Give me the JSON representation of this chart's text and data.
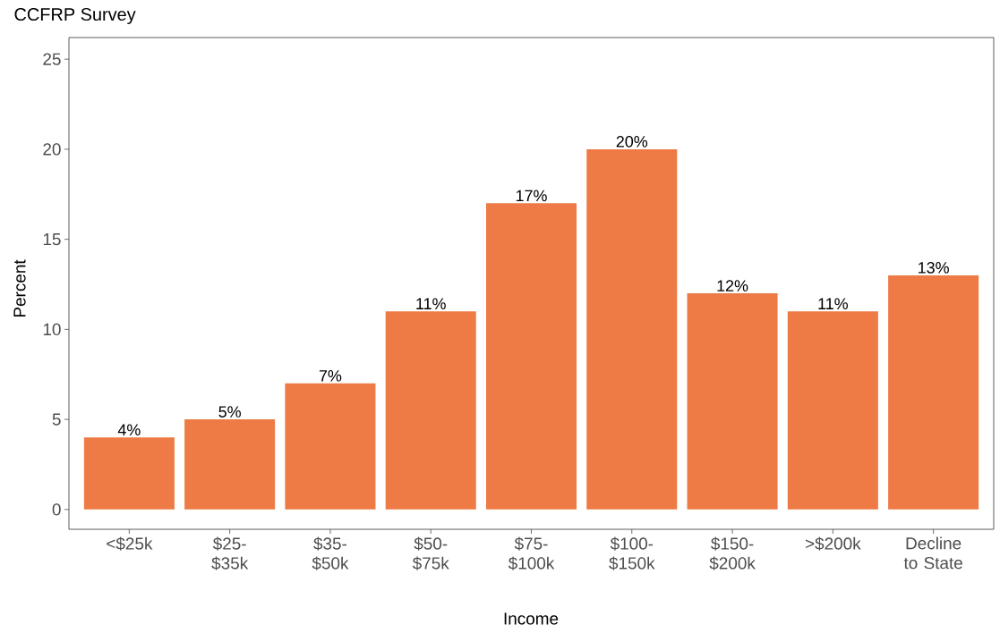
{
  "chart_data": {
    "type": "bar",
    "title": "CCFRP Survey",
    "xlabel": "Income",
    "ylabel": "Percent",
    "categories": [
      "<$25k",
      "$25- $35k",
      "$35- $50k",
      "$50- $75k",
      "$75- $100k",
      "$100- $150k",
      "$150- $200k",
      ">$200k",
      "Decline to State"
    ],
    "values": [
      4,
      5,
      7,
      11,
      17,
      20,
      12,
      11,
      13
    ],
    "value_labels": [
      "4%",
      "5%",
      "7%",
      "11%",
      "17%",
      "20%",
      "12%",
      "11%",
      "13%"
    ],
    "color": "#ee7b45",
    "ylim": [
      -1.1,
      26.2
    ],
    "yticks": [
      0,
      5,
      10,
      15,
      20,
      25
    ],
    "grid": false
  }
}
